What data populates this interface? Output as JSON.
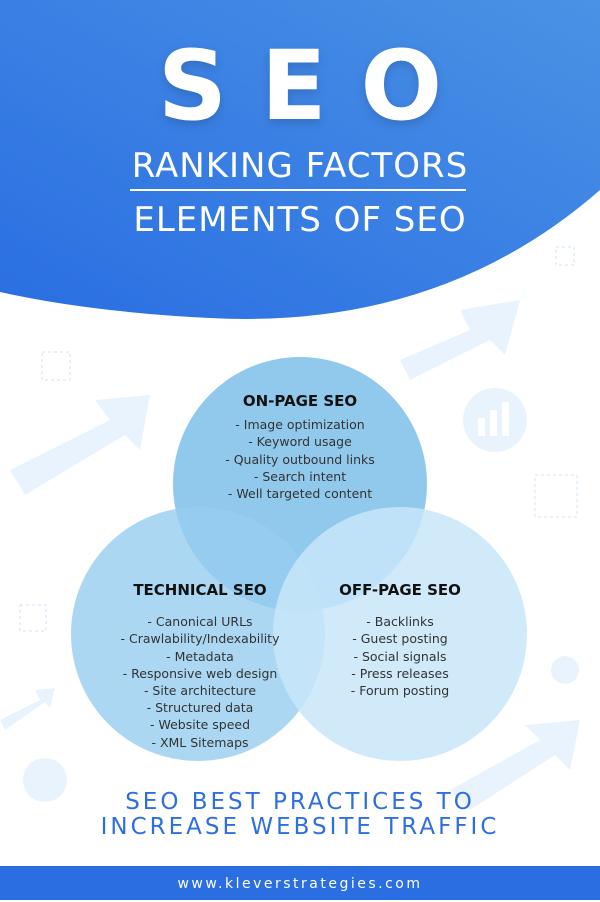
{
  "header": {
    "title": "SEO",
    "subtitle": "RANKING FACTORS",
    "subtitle2": "ELEMENTS OF SEO"
  },
  "venn": {
    "on_page": {
      "title": "ON-PAGE SEO",
      "items": [
        "- Image optimization",
        "- Keyword usage",
        "- Quality outbound links",
        "- Search intent",
        "- Well targeted content"
      ]
    },
    "technical": {
      "title": "TECHNICAL SEO",
      "items": [
        "- Canonical URLs",
        "- Crawlability/Indexability",
        "- Metadata",
        "- Responsive web design",
        "- Site architecture",
        "- Structured data",
        "- Website speed",
        "- XML Sitemaps"
      ]
    },
    "off_page": {
      "title": "OFF-PAGE SEO",
      "items": [
        "- Backlinks",
        "- Guest posting",
        "- Social signals",
        "- Press releases",
        "- Forum posting"
      ]
    },
    "colors": {
      "on_page": "#7ec0ea",
      "technical": "#96cdf0",
      "off_page": "#c8e6f9"
    }
  },
  "tagline": {
    "line1": "SEO BEST PRACTICES TO",
    "line2": "INCREASE WEBSITE TRAFFIC"
  },
  "footer": {
    "url": "www.kleverstrategies.com"
  },
  "colors": {
    "brand": "#2a6ee2",
    "accent_text": "#2d6fe0"
  }
}
